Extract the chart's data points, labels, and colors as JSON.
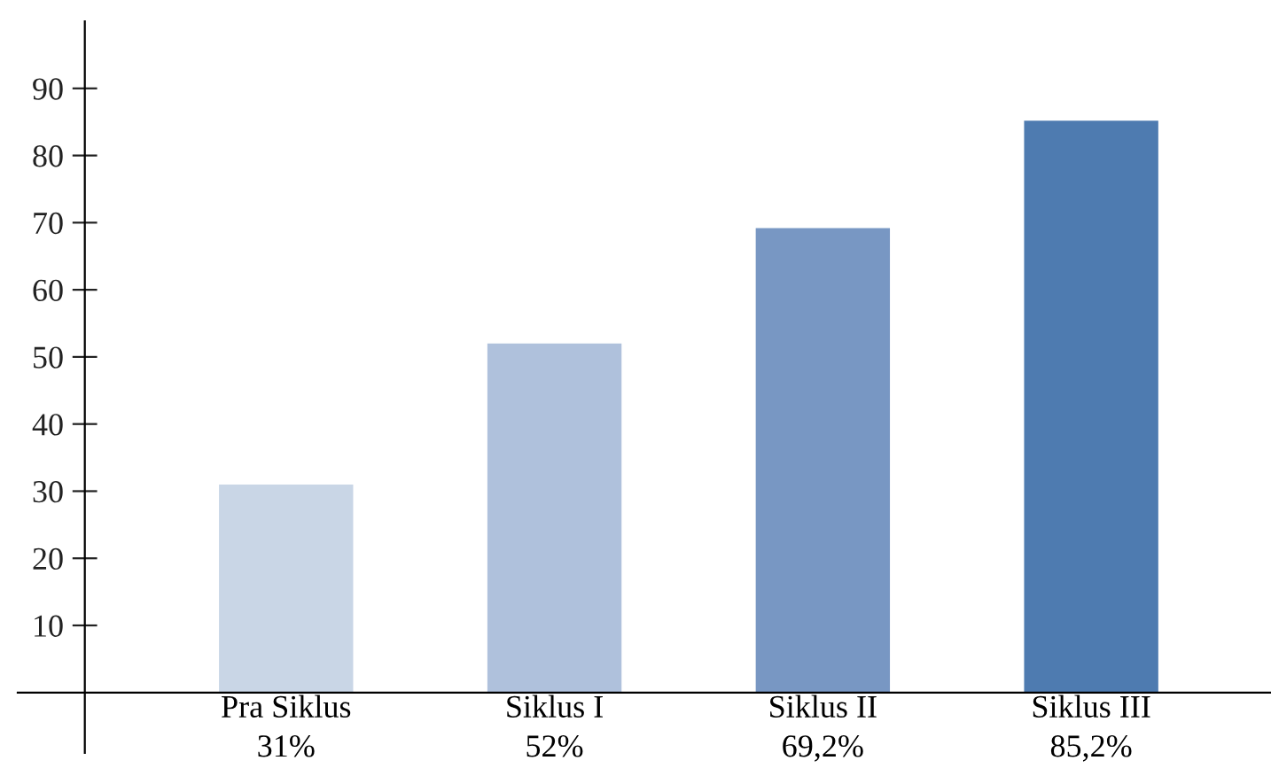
{
  "chart_data": {
    "type": "bar",
    "categories": [
      "Pra Siklus",
      "Siklus I",
      "Siklus II",
      "Siklus III"
    ],
    "values": [
      31,
      52,
      69.2,
      85.2
    ],
    "value_labels": [
      "31%",
      "52%",
      "69,2%",
      "85,2%"
    ],
    "colors": [
      "#c9d6e6",
      "#afc1dc",
      "#7897c3",
      "#4e7bb0"
    ],
    "ylim": [
      -9,
      100
    ],
    "yticks": [
      10,
      20,
      30,
      40,
      50,
      60,
      70,
      80,
      90
    ],
    "grid": false,
    "legend": false
  }
}
